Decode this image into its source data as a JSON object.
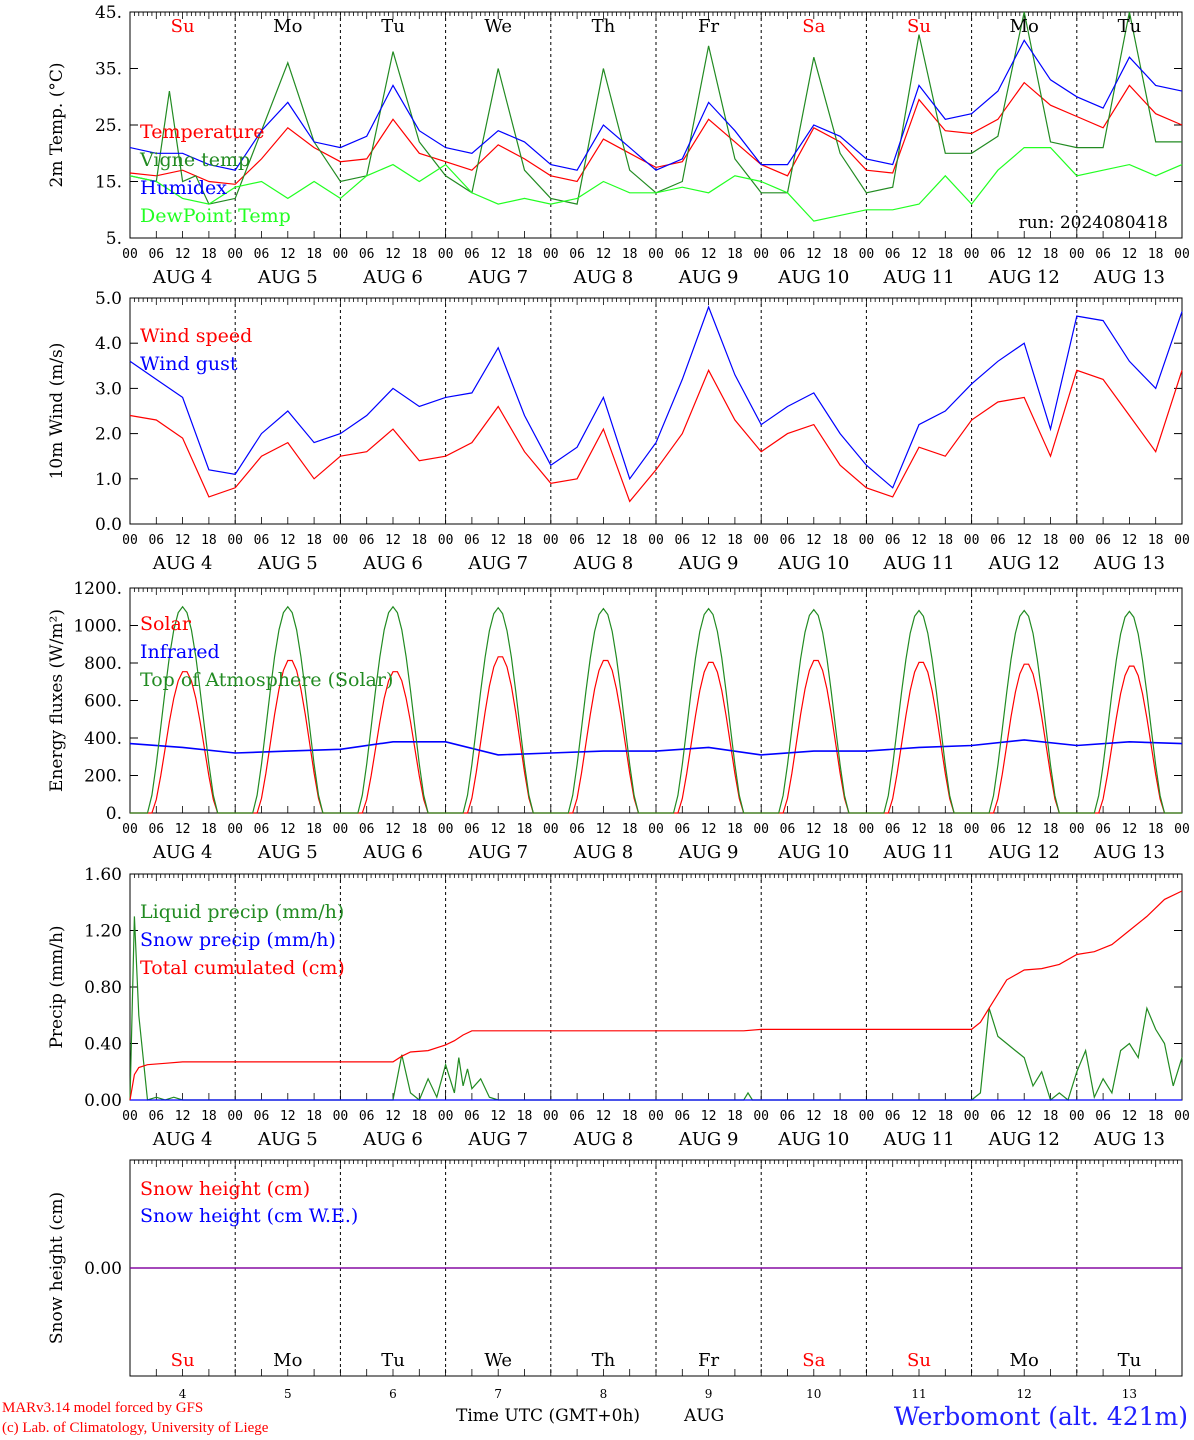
{
  "run_label": "run: 2024080418",
  "footer": {
    "credit_line1": "MARv3.14 model forced by GFS",
    "credit_line2": "(c) Lab. of Climatology, University of Liege",
    "time_axis_label": "Time UTC (GMT+0h)",
    "month_label": "AUG",
    "station": "Werbomont (alt. 421m)"
  },
  "colors": {
    "red": "#ff0000",
    "blue": "#0000ff",
    "green": "#228B22",
    "lightgreen": "#22ff22",
    "purple": "#8000a0"
  },
  "days": {
    "weekday_labels": [
      "Su",
      "Mo",
      "Tu",
      "We",
      "Th",
      "Fr",
      "Sa",
      "Su",
      "Mo",
      "Tu"
    ],
    "weekday_colors": [
      "red",
      "black",
      "black",
      "black",
      "black",
      "black",
      "red",
      "red",
      "black",
      "black"
    ],
    "date_labels": [
      "AUG  4",
      "AUG  5",
      "AUG  6",
      "AUG  7",
      "AUG  8",
      "AUG  9",
      "AUG 10",
      "AUG 11",
      "AUG 12",
      "AUG 13"
    ],
    "day_numbers": [
      "4",
      "5",
      "6",
      "7",
      "8",
      "9",
      "10",
      "11",
      "12",
      "13"
    ],
    "hour_ticks": [
      "00",
      "06",
      "12",
      "18"
    ],
    "final_hour": "00"
  },
  "chart_data": [
    {
      "type": "line",
      "ylabel": "2m Temp. (°C)",
      "ylim": [
        5,
        45
      ],
      "yticks": [
        "5.",
        "15.",
        "25.",
        "35.",
        "45."
      ],
      "ytick_values": [
        5,
        15,
        25,
        35,
        45
      ],
      "x_unit": "hours since AUG 4 00 UTC",
      "series": [
        {
          "name": "Temperature",
          "color": "red",
          "x": [
            0,
            6,
            12,
            18,
            24,
            30,
            36,
            42,
            48,
            54,
            60,
            66,
            72,
            78,
            84,
            90,
            96,
            102,
            108,
            114,
            120,
            126,
            132,
            138,
            144,
            150,
            156,
            162,
            168,
            174,
            180,
            186,
            192,
            198,
            204,
            210,
            216,
            222,
            228,
            234,
            240
          ],
          "y": [
            16.5,
            16,
            17,
            15,
            14.5,
            19,
            24.5,
            21,
            18.5,
            19,
            26,
            20,
            18.5,
            17,
            21.5,
            19,
            16,
            15,
            22.5,
            20,
            17.5,
            18.5,
            26,
            22,
            18,
            16,
            24.5,
            22,
            17,
            16.5,
            29.5,
            24,
            23.5,
            26,
            32.5,
            28.5,
            26.5,
            24.5,
            32,
            27,
            25
          ]
        },
        {
          "name": "Vigne temp",
          "color": "green",
          "x": [
            0,
            6,
            9,
            12,
            15,
            18,
            24,
            30,
            36,
            42,
            48,
            54,
            60,
            66,
            72,
            78,
            84,
            90,
            96,
            102,
            108,
            114,
            120,
            126,
            132,
            138,
            144,
            150,
            156,
            162,
            168,
            174,
            180,
            186,
            192,
            198,
            204,
            210,
            216,
            222,
            228,
            234,
            240
          ],
          "y": [
            16,
            15,
            31,
            15,
            16,
            11,
            12,
            24,
            36,
            22,
            15,
            16,
            38,
            22,
            16,
            13,
            35,
            17,
            12,
            11,
            35,
            17,
            13,
            15,
            39,
            19,
            13,
            13,
            37,
            20,
            13,
            14,
            41,
            20,
            20,
            23,
            45,
            22,
            21,
            21,
            45,
            22,
            22
          ]
        },
        {
          "name": "Humidex",
          "color": "blue",
          "x": [
            0,
            6,
            12,
            18,
            24,
            30,
            36,
            42,
            48,
            54,
            60,
            66,
            72,
            78,
            84,
            90,
            96,
            102,
            108,
            114,
            120,
            126,
            132,
            138,
            144,
            150,
            156,
            162,
            168,
            174,
            180,
            186,
            192,
            198,
            204,
            210,
            216,
            222,
            228,
            234,
            240
          ],
          "y": [
            21,
            20,
            20,
            18,
            17,
            24,
            29,
            22,
            21,
            23,
            32,
            24,
            21,
            20,
            24,
            22,
            18,
            17,
            25,
            21,
            17,
            19,
            29,
            24,
            18,
            18,
            25,
            23,
            19,
            18,
            32,
            26,
            27,
            31,
            40,
            33,
            30,
            28,
            37,
            32,
            31
          ]
        },
        {
          "name": "DewPoint Temp",
          "color": "lightgreen",
          "x": [
            0,
            6,
            12,
            18,
            24,
            30,
            36,
            42,
            48,
            54,
            60,
            66,
            72,
            78,
            84,
            90,
            96,
            102,
            108,
            114,
            120,
            126,
            132,
            138,
            144,
            150,
            156,
            162,
            168,
            174,
            180,
            186,
            192,
            198,
            204,
            210,
            216,
            222,
            228,
            234,
            240
          ],
          "y": [
            16,
            15,
            12,
            11,
            14,
            15,
            12,
            15,
            12,
            16,
            18,
            15,
            18,
            13,
            11,
            12,
            11,
            12,
            15,
            13,
            13,
            14,
            13,
            16,
            15,
            13,
            8,
            9,
            10,
            10,
            11,
            16,
            11,
            17,
            21,
            21,
            16,
            17,
            18,
            16,
            18
          ]
        }
      ]
    },
    {
      "type": "line",
      "ylabel": "10m Wind (m/s)",
      "ylim": [
        0,
        5
      ],
      "yticks": [
        "0.0",
        "1.0",
        "2.0",
        "3.0",
        "4.0",
        "5.0"
      ],
      "ytick_values": [
        0,
        1,
        2,
        3,
        4,
        5
      ],
      "x_unit": "hours since AUG 4 00 UTC",
      "series": [
        {
          "name": "Wind speed",
          "color": "red",
          "x": [
            0,
            6,
            12,
            18,
            24,
            30,
            36,
            42,
            48,
            54,
            60,
            66,
            72,
            78,
            84,
            90,
            96,
            102,
            108,
            114,
            120,
            126,
            132,
            138,
            144,
            150,
            156,
            162,
            168,
            174,
            180,
            186,
            192,
            198,
            204,
            210,
            216,
            222,
            228,
            234,
            240
          ],
          "y": [
            2.4,
            2.3,
            1.9,
            0.6,
            0.8,
            1.5,
            1.8,
            1.0,
            1.5,
            1.6,
            2.1,
            1.4,
            1.5,
            1.8,
            2.6,
            1.6,
            0.9,
            1.0,
            2.1,
            0.5,
            1.2,
            2.0,
            3.4,
            2.3,
            1.6,
            2.0,
            2.2,
            1.3,
            0.8,
            0.6,
            1.7,
            1.5,
            2.3,
            2.7,
            2.8,
            1.5,
            3.4,
            3.2,
            2.4,
            1.6,
            3.4
          ]
        },
        {
          "name": "Wind gust",
          "color": "blue",
          "x": [
            0,
            6,
            12,
            18,
            24,
            30,
            36,
            42,
            48,
            54,
            60,
            66,
            72,
            78,
            84,
            90,
            96,
            102,
            108,
            114,
            120,
            126,
            132,
            138,
            144,
            150,
            156,
            162,
            168,
            174,
            180,
            186,
            192,
            198,
            204,
            210,
            216,
            222,
            228,
            234,
            240
          ],
          "y": [
            3.6,
            3.2,
            2.8,
            1.2,
            1.1,
            2.0,
            2.5,
            1.8,
            2.0,
            2.4,
            3.0,
            2.6,
            2.8,
            2.9,
            3.9,
            2.4,
            1.3,
            1.7,
            2.8,
            1.0,
            1.8,
            3.2,
            4.8,
            3.3,
            2.2,
            2.6,
            2.9,
            2.0,
            1.3,
            0.8,
            2.2,
            2.5,
            3.1,
            3.6,
            4.0,
            2.1,
            4.6,
            4.5,
            3.6,
            3.0,
            4.7
          ]
        }
      ]
    },
    {
      "type": "line",
      "ylabel": "Energy fluxes (W/m²)",
      "ylim": [
        0,
        1200
      ],
      "yticks": [
        "0.",
        "200.",
        "400.",
        "600.",
        "800.",
        "1000.",
        "1200."
      ],
      "ytick_values": [
        0,
        200,
        400,
        600,
        800,
        1000,
        1200
      ],
      "x_unit": "hours since AUG 4 00 UTC",
      "series": [
        {
          "name": "Solar",
          "color": "red",
          "diurnal_peaks": [
            760,
            820,
            760,
            840,
            820,
            810,
            820,
            810,
            800,
            790
          ],
          "sunrise_h": 5,
          "sunset_h": 20
        },
        {
          "name": "Infrared",
          "color": "blue",
          "x": [
            0,
            12,
            24,
            36,
            48,
            60,
            72,
            84,
            96,
            108,
            120,
            132,
            144,
            156,
            168,
            180,
            192,
            204,
            216,
            228,
            240
          ],
          "y": [
            370,
            350,
            320,
            330,
            340,
            380,
            380,
            310,
            320,
            330,
            330,
            350,
            310,
            330,
            330,
            350,
            360,
            390,
            360,
            380,
            370
          ]
        },
        {
          "name": "Top of Atmosphere (Solar)",
          "color": "green",
          "diurnal_peaks": [
            1100,
            1100,
            1100,
            1095,
            1090,
            1090,
            1085,
            1080,
            1080,
            1075
          ],
          "sunrise_h": 4,
          "sunset_h": 20
        }
      ]
    },
    {
      "type": "line",
      "ylabel": "Precip (mm/h)",
      "ylim": [
        0,
        1.6
      ],
      "yticks": [
        "0.00",
        "0.40",
        "0.80",
        "1.20",
        "1.60"
      ],
      "ytick_values": [
        0,
        0.4,
        0.8,
        1.2,
        1.6
      ],
      "x_unit": "hours since AUG 4 00 UTC",
      "series": [
        {
          "name": "Liquid precip (mm/h)",
          "color": "green",
          "x": [
            0,
            1,
            2,
            4,
            6,
            8,
            10,
            12,
            60,
            62,
            64,
            66,
            68,
            70,
            72,
            74,
            75,
            76,
            77,
            78,
            80,
            82,
            84,
            96,
            140,
            141,
            142,
            144,
            146,
            192,
            194,
            196,
            198,
            200,
            202,
            204,
            206,
            208,
            210,
            212,
            214,
            216,
            218,
            220,
            222,
            224,
            226,
            228,
            230,
            232,
            234,
            236,
            238,
            240
          ],
          "y": [
            0,
            1.3,
            0.6,
            0,
            0.02,
            0,
            0.02,
            0,
            0,
            0.32,
            0.05,
            0,
            0.15,
            0.02,
            0.25,
            0.05,
            0.3,
            0.1,
            0.22,
            0.08,
            0.15,
            0.02,
            0,
            0,
            0,
            0.05,
            0,
            0,
            0,
            0,
            0.05,
            0.65,
            0.45,
            0.4,
            0.35,
            0.3,
            0.1,
            0.2,
            0,
            0.05,
            0,
            0.2,
            0.35,
            0.02,
            0.15,
            0.05,
            0.35,
            0.4,
            0.3,
            0.65,
            0.5,
            0.4,
            0.1,
            0.3
          ]
        },
        {
          "name": "Snow precip (mm/h)",
          "color": "blue",
          "x": [
            0,
            240
          ],
          "y": [
            0,
            0
          ]
        },
        {
          "name": "Total cumulated (cm)",
          "color": "red",
          "x": [
            0,
            1,
            2,
            4,
            8,
            12,
            60,
            62,
            64,
            68,
            72,
            74,
            76,
            78,
            84,
            96,
            140,
            144,
            192,
            194,
            196,
            198,
            200,
            204,
            208,
            212,
            216,
            220,
            224,
            228,
            232,
            236,
            240
          ],
          "y": [
            0,
            0.18,
            0.23,
            0.25,
            0.26,
            0.27,
            0.27,
            0.31,
            0.34,
            0.35,
            0.39,
            0.42,
            0.46,
            0.49,
            0.49,
            0.49,
            0.49,
            0.5,
            0.5,
            0.55,
            0.65,
            0.75,
            0.85,
            0.92,
            0.93,
            0.96,
            1.03,
            1.05,
            1.1,
            1.2,
            1.3,
            1.42,
            1.48
          ]
        }
      ]
    },
    {
      "type": "line",
      "ylabel": "Snow height (cm)",
      "ylim": [
        -1,
        1
      ],
      "yticks": [
        "0.00"
      ],
      "ytick_values": [
        0
      ],
      "x_unit": "hours since AUG 4 00 UTC",
      "series": [
        {
          "name": "Snow height (cm)",
          "color": "red",
          "x": [
            0,
            240
          ],
          "y": [
            0,
            0
          ]
        },
        {
          "name": "Snow height (cm W.E.)",
          "color": "blue",
          "x": [
            0,
            240
          ],
          "y": [
            0,
            0
          ]
        }
      ]
    }
  ]
}
